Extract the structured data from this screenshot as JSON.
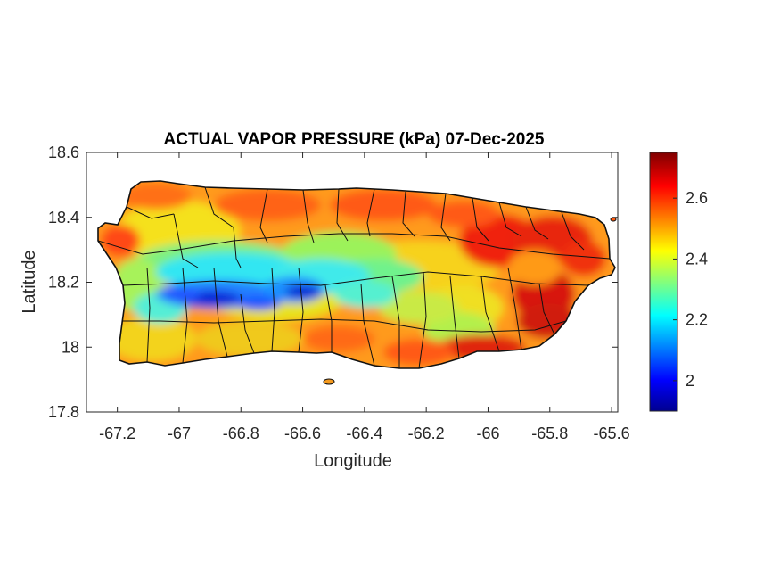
{
  "title": "ACTUAL VAPOR PRESSURE (kPa) 07-Dec-2025",
  "map": {
    "xlabel": "Longitude",
    "ylabel": "Latitude",
    "xlim": [
      -67.3,
      -65.58
    ],
    "ylim": [
      17.8,
      18.6
    ],
    "xticks": [
      "-67.2",
      "-67",
      "-66.8",
      "-66.6",
      "-66.4",
      "-66.2",
      "-66",
      "-65.8",
      "-65.6"
    ],
    "xtick_values": [
      -67.2,
      -67.0,
      -66.8,
      -66.6,
      -66.4,
      -66.2,
      -66.0,
      -65.8,
      -65.6
    ],
    "yticks": [
      "18.6",
      "18.4",
      "18.2",
      "18",
      "17.8"
    ],
    "ytick_values": [
      18.6,
      18.4,
      18.2,
      18.0,
      17.8
    ],
    "colormap": "jet",
    "region": "Puerto Rico"
  },
  "colorbar": {
    "min": 1.9,
    "max": 2.75,
    "ticks": [
      "2",
      "2.2",
      "2.4",
      "2.6"
    ],
    "tick_values": [
      2.0,
      2.2,
      2.4,
      2.6
    ]
  }
}
